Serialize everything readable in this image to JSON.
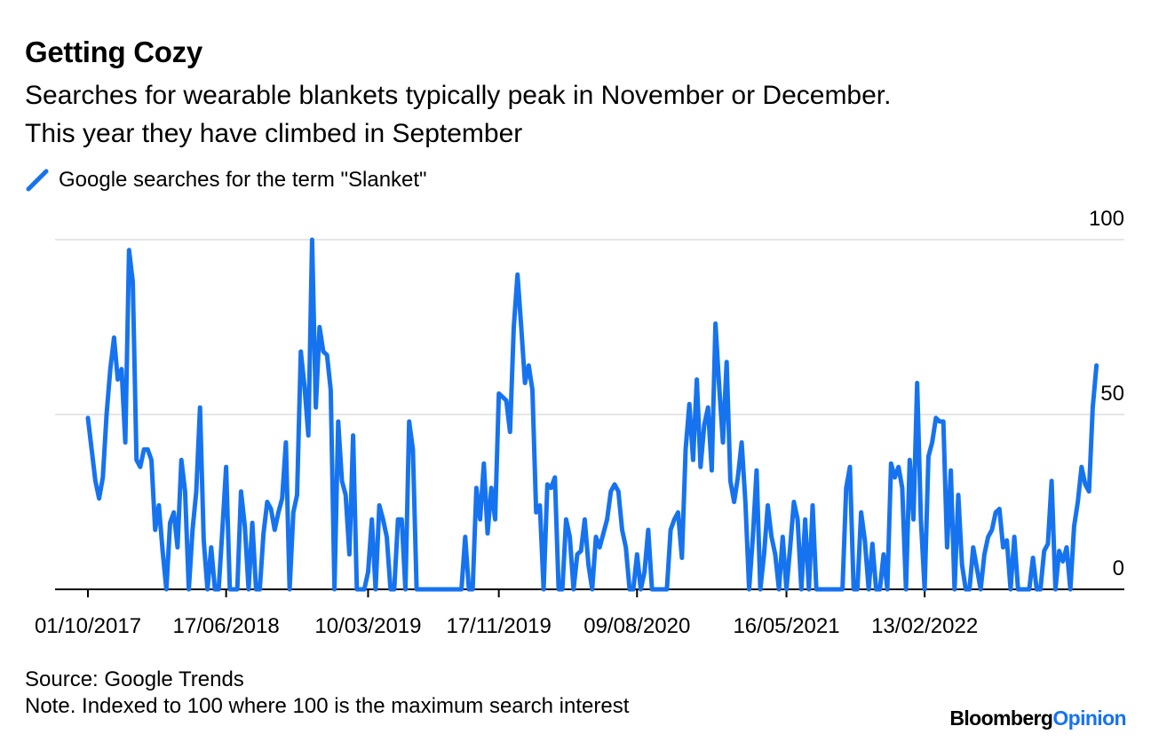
{
  "header": {
    "title": "Getting Cozy",
    "subtitle_line1": "Searches for wearable blankets typically peak in November or December.",
    "subtitle_line2": "This year they have climbed in September"
  },
  "legend": {
    "label": "Google searches for the term \"Slanket\"",
    "color": "#1673f0"
  },
  "footer": {
    "source": "Source: Google Trends",
    "note": "Note. Indexed to 100 where 100 is the maximum search interest",
    "brand_part1": "Bloomberg",
    "brand_part2": "Opinion"
  },
  "chart_data": {
    "type": "line",
    "title": "Getting Cozy",
    "series": [
      {
        "name": "Google searches for the term \"Slanket\"",
        "color": "#1673f0",
        "start_week_index": 0,
        "values": [
          49,
          40,
          31,
          26,
          32,
          50,
          63,
          72,
          60,
          63,
          42,
          97,
          88,
          37,
          35,
          40,
          40,
          37,
          17,
          24,
          11,
          0,
          19,
          22,
          12,
          37,
          28,
          0,
          17,
          28,
          52,
          14,
          0,
          12,
          0,
          0,
          17,
          35,
          0,
          0,
          0,
          28,
          18,
          0,
          19,
          0,
          0,
          16,
          25,
          23,
          17,
          22,
          26,
          42,
          0,
          22,
          27,
          68,
          58,
          44,
          100,
          52,
          75,
          68,
          67,
          57,
          0,
          48,
          31,
          27,
          10,
          44,
          0,
          0,
          0,
          5,
          20,
          0,
          24,
          20,
          15,
          0,
          0,
          20,
          20,
          0,
          48,
          40,
          0,
          0,
          0,
          0,
          0,
          0,
          0,
          0,
          0,
          0,
          0,
          0,
          0,
          15,
          0,
          0,
          29,
          20,
          36,
          16,
          29,
          20,
          56,
          55,
          54,
          45,
          75,
          90,
          75,
          59,
          64,
          57,
          22,
          24,
          0,
          30,
          29,
          32,
          0,
          0,
          20,
          15,
          0,
          10,
          11,
          20,
          7,
          0,
          15,
          12,
          16,
          20,
          28,
          30,
          28,
          17,
          12,
          0,
          0,
          10,
          0,
          5,
          17,
          0,
          0,
          0,
          0,
          0,
          17,
          20,
          22,
          9,
          40,
          53,
          37,
          60,
          35,
          47,
          52,
          34,
          76,
          58,
          42,
          65,
          31,
          25,
          32,
          42,
          25,
          0,
          15,
          34,
          0,
          10,
          24,
          15,
          10,
          0,
          15,
          0,
          12,
          25,
          20,
          0,
          20,
          0,
          24,
          0,
          0,
          0,
          0,
          0,
          0,
          0,
          0,
          29,
          35,
          0,
          0,
          22,
          14,
          0,
          13,
          0,
          0,
          10,
          0,
          36,
          32,
          35,
          29,
          0,
          37,
          20,
          59,
          20,
          0,
          38,
          42,
          49,
          48,
          48,
          12,
          34,
          0,
          27,
          7,
          0,
          0,
          12,
          6,
          0,
          10,
          15,
          17,
          22,
          23,
          12,
          14,
          0,
          15,
          0,
          0,
          0,
          0,
          9,
          0,
          0,
          11,
          13,
          31,
          0,
          11,
          8,
          12,
          0,
          18,
          25,
          35,
          30,
          28,
          52,
          64
        ]
      }
    ],
    "x_tick_labels": [
      "01/10/2017",
      "17/06/2018",
      "10/03/2019",
      "17/11/2019",
      "09/08/2020",
      "16/05/2021",
      "13/02/2022"
    ],
    "x_tick_week_indices": [
      0,
      37,
      75,
      110,
      147,
      187,
      224
    ],
    "y_tick_labels": [
      "100",
      "50",
      "0"
    ],
    "y_tick_values": [
      100,
      50,
      0
    ],
    "xlabel": "",
    "ylabel": "",
    "ylim": [
      0,
      100
    ],
    "grid": true,
    "legend_position": "top-left"
  }
}
